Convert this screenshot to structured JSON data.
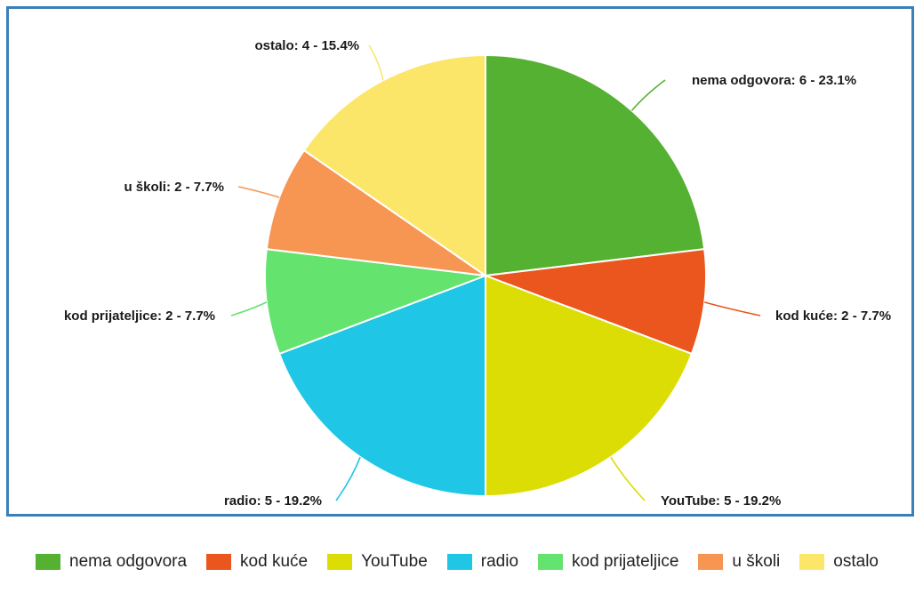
{
  "chart_data": {
    "type": "pie",
    "slices": [
      {
        "name": "nema odgovora",
        "value": 6,
        "percent": "23.1%",
        "label": "nema odgovora: 6 - 23.1%",
        "color": "#55b132"
      },
      {
        "name": "kod kuće",
        "value": 2,
        "percent": "7.7%",
        "label": "kod kuće: 2 - 7.7%",
        "color": "#ea561d"
      },
      {
        "name": "YouTube",
        "value": 5,
        "percent": "19.2%",
        "label": "YouTube: 5 - 19.2%",
        "color": "#dddd06"
      },
      {
        "name": "radio",
        "value": 5,
        "percent": "19.2%",
        "label": "radio: 5 - 19.2%",
        "color": "#1fc6e6"
      },
      {
        "name": "kod prijateljice",
        "value": 2,
        "percent": "7.7%",
        "label": "kod prijateljice: 2 - 7.7%",
        "color": "#64e36f"
      },
      {
        "name": "u školi",
        "value": 2,
        "percent": "7.7%",
        "label": "u školi: 2 - 7.7%",
        "color": "#f79553"
      },
      {
        "name": "ostalo",
        "value": 4,
        "percent": "15.4%",
        "label": "ostalo: 4 - 15.4%",
        "color": "#fce66a"
      }
    ],
    "legend_position": "bottom"
  },
  "colors": {
    "frame_border": "#3b7fb8",
    "slice_stroke": "#ffffff"
  }
}
